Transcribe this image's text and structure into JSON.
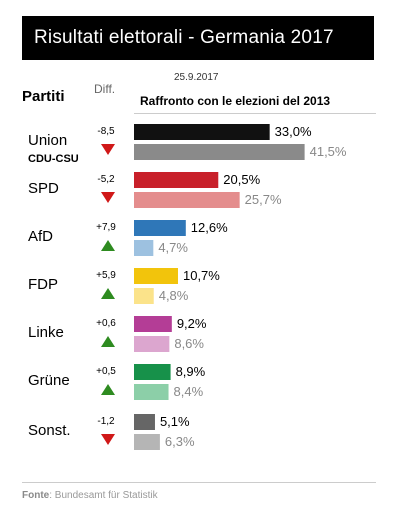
{
  "title": "Risultati elettorali - Germania 2017",
  "header": {
    "parties_label": "Partiti",
    "diff_label": "Diff.",
    "date_2017": "25.9.2017",
    "comparison_label": "Raffronto con le elezioni del 2013"
  },
  "source": {
    "label": "Fonte",
    "text": ": Bundesamt für Statistik"
  },
  "colors": {
    "up": "#2e8b20",
    "down": "#d01818"
  },
  "chart_data": {
    "type": "bar",
    "categories": [
      "Union",
      "SPD",
      "AfD",
      "FDP",
      "Linke",
      "Grüne",
      "Sonst."
    ],
    "category_sublabels": [
      "CDU-CSU",
      "",
      "",
      "",
      "",
      "",
      ""
    ],
    "series": [
      {
        "values": [
          33.0,
          20.5,
          12.6,
          10.7,
          9.2,
          8.9,
          5.1
        ],
        "labels": [
          "33,0%",
          "20,5%",
          "12,6%",
          "10,7%",
          "9,2%",
          "8,9%",
          "5,1%"
        ],
        "colors": [
          "#111111",
          "#c8202a",
          "#2f77b8",
          "#f2c40c",
          "#b43d96",
          "#17914a",
          "#666666"
        ]
      },
      {
        "values": [
          41.5,
          25.7,
          4.7,
          4.8,
          8.6,
          8.4,
          6.3
        ],
        "labels": [
          "41,5%",
          "25,7%",
          "4,7%",
          "4,8%",
          "8,6%",
          "8,4%",
          "6,3%"
        ],
        "colors": [
          "#8a8a8a",
          "#e48d8d",
          "#9dc1e0",
          "#fbe38a",
          "#dca6cf",
          "#8ccfa8",
          "#b5b5b5"
        ]
      }
    ],
    "diff": [
      "-8,5",
      "-5,2",
      "+7,9",
      "+5,9",
      "+0,6",
      "+0,5",
      "-1,2"
    ],
    "diff_direction": [
      "down",
      "down",
      "up",
      "up",
      "up",
      "up",
      "down"
    ],
    "xlim": [
      0,
      45
    ]
  }
}
